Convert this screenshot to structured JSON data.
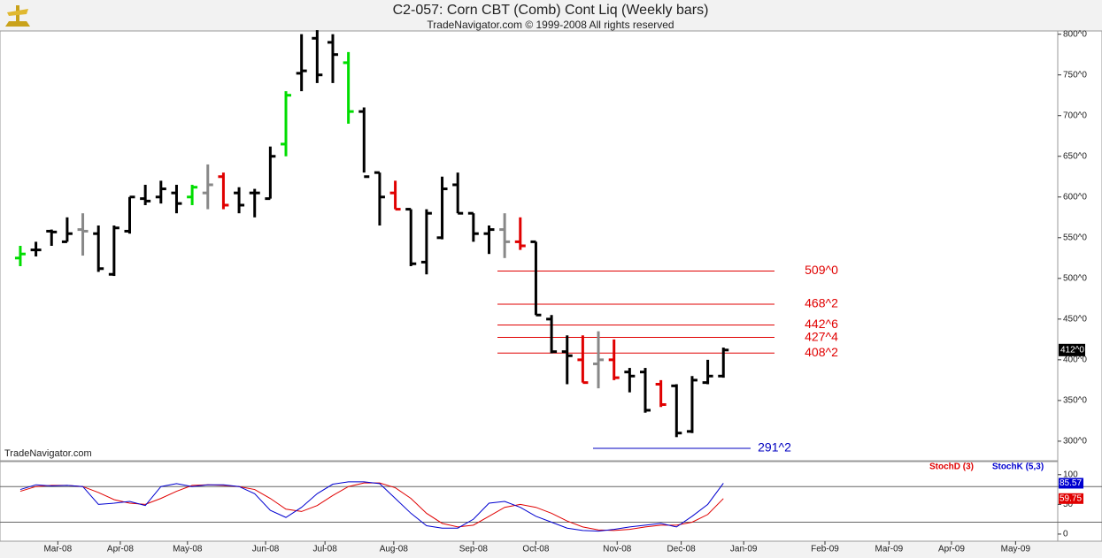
{
  "chart_data": [
    {
      "type": "ohlc",
      "title": "C2-057:  Corn CBT (Comb) Cont Liq  (Weekly bars)",
      "subtitle": "TradeNavigator.com © 1999-2008 All rights reserved",
      "watermark": "TradeNavigator.com",
      "x": [
        0,
        1,
        2,
        3,
        4,
        5,
        6,
        7,
        8,
        9,
        10,
        11,
        12,
        13,
        14,
        15,
        16,
        17,
        18,
        19,
        20,
        21,
        22,
        23,
        24,
        25,
        26,
        27,
        28,
        29,
        30,
        31,
        32,
        33,
        34,
        35,
        36,
        37,
        38,
        39,
        40,
        41,
        42,
        43,
        44,
        45
      ],
      "open": [
        525,
        535,
        558,
        545,
        560,
        555,
        505,
        558,
        598,
        600,
        605,
        600,
        605,
        625,
        605,
        605,
        598,
        665,
        752,
        795,
        790,
        765,
        705,
        630,
        605,
        585,
        520,
        550,
        615,
        580,
        555,
        560,
        545,
        545,
        450,
        410,
        400,
        395,
        400,
        385,
        385,
        370,
        368,
        312,
        372,
        380
      ],
      "high": [
        540,
        545,
        560,
        575,
        580,
        565,
        565,
        600,
        615,
        620,
        615,
        615,
        640,
        630,
        612,
        610,
        662,
        730,
        800,
        805,
        800,
        778,
        710,
        630,
        620,
        585,
        585,
        625,
        630,
        580,
        565,
        580,
        575,
        545,
        455,
        430,
        430,
        435,
        425,
        390,
        390,
        375,
        370,
        380,
        400,
        415
      ],
      "low": [
        515,
        527,
        540,
        545,
        528,
        508,
        503,
        555,
        590,
        592,
        580,
        590,
        585,
        585,
        580,
        575,
        598,
        650,
        730,
        740,
        740,
        690,
        630,
        565,
        585,
        515,
        505,
        548,
        580,
        545,
        530,
        525,
        535,
        455,
        408,
        370,
        372,
        365,
        375,
        360,
        335,
        342,
        305,
        310,
        370,
        378
      ],
      "close": [
        530,
        535,
        557,
        555,
        558,
        512,
        562,
        600,
        595,
        610,
        592,
        612,
        615,
        590,
        590,
        605,
        650,
        725,
        755,
        750,
        775,
        705,
        625,
        600,
        585,
        518,
        580,
        610,
        580,
        555,
        560,
        545,
        540,
        455,
        410,
        405,
        372,
        400,
        378,
        380,
        338,
        345,
        310,
        375,
        380,
        412
      ],
      "colors": [
        "#00dd00",
        "#000000",
        "#000000",
        "#000000",
        "#888888",
        "#000000",
        "#000000",
        "#000000",
        "#000000",
        "#000000",
        "#000000",
        "#00dd00",
        "#888888",
        "#e00000",
        "#000000",
        "#000000",
        "#000000",
        "#00dd00",
        "#000000",
        "#000000",
        "#000000",
        "#00dd00",
        "#000000",
        "#000000",
        "#e00000",
        "#000000",
        "#000000",
        "#000000",
        "#000000",
        "#000000",
        "#000000",
        "#888888",
        "#e00000",
        "#000000",
        "#000000",
        "#000000",
        "#e00000",
        "#888888",
        "#e00000",
        "#000000",
        "#000000",
        "#e00000",
        "#000000",
        "#000000",
        "#000000",
        "#000000"
      ],
      "xlim": [
        -1.3,
        66.4
      ],
      "ylim": [
        276,
        804
      ],
      "yticks": [
        {
          "value": 300,
          "label": "300^0"
        },
        {
          "value": 350,
          "label": "350^0"
        },
        {
          "value": 400,
          "label": "400^0"
        },
        {
          "value": 450,
          "label": "450^0"
        },
        {
          "value": 500,
          "label": "500^0"
        },
        {
          "value": 550,
          "label": "550^0"
        },
        {
          "value": 600,
          "label": "600^0"
        },
        {
          "value": 650,
          "label": "650^0"
        },
        {
          "value": 700,
          "label": "700^0"
        },
        {
          "value": 750,
          "label": "750^0"
        },
        {
          "value": 800,
          "label": "800^0"
        }
      ],
      "last_price": {
        "value": 412,
        "label": "412^0"
      },
      "resistance_levels": [
        {
          "value": 509,
          "label": "509^0"
        },
        {
          "value": 468.25,
          "label": "468^2"
        },
        {
          "value": 442.75,
          "label": "442^6"
        },
        {
          "value": 427.5,
          "label": "427^4"
        },
        {
          "value": 408.25,
          "label": "408^2"
        }
      ],
      "resistance_color": "#e00000",
      "support_levels": [
        {
          "value": 291.25,
          "label": "291^2"
        }
      ],
      "support_color": "#0000c0"
    },
    {
      "type": "line",
      "x": [
        0,
        1,
        2,
        3,
        4,
        5,
        6,
        7,
        8,
        9,
        10,
        11,
        12,
        13,
        14,
        15,
        16,
        17,
        18,
        19,
        20,
        21,
        22,
        23,
        24,
        25,
        26,
        27,
        28,
        29,
        30,
        31,
        32,
        33,
        34,
        35,
        36,
        37,
        38,
        39,
        40,
        41,
        42,
        43,
        44,
        45
      ],
      "series": [
        {
          "name": "StochD (3)",
          "color": "#e00000",
          "values": [
            72,
            80,
            82,
            82,
            80,
            70,
            58,
            52,
            50,
            60,
            72,
            82,
            83,
            82,
            80,
            75,
            60,
            42,
            38,
            48,
            65,
            80,
            86,
            86,
            78,
            60,
            35,
            18,
            12,
            15,
            30,
            45,
            50,
            45,
            35,
            22,
            12,
            7,
            6,
            8,
            12,
            15,
            15,
            20,
            33,
            59.75
          ]
        },
        {
          "name": "StochK (5,3)",
          "color": "#0000d0",
          "values": [
            75,
            83,
            81,
            82,
            80,
            50,
            52,
            55,
            48,
            80,
            85,
            80,
            83,
            83,
            80,
            68,
            40,
            28,
            45,
            68,
            84,
            88,
            88,
            85,
            60,
            35,
            14,
            10,
            10,
            25,
            52,
            55,
            45,
            30,
            20,
            10,
            6,
            5,
            8,
            12,
            15,
            18,
            12,
            30,
            50,
            85.57
          ]
        }
      ],
      "xlim": [
        -1.3,
        66.4
      ],
      "ylim": [
        -12,
        122
      ],
      "yticks": [
        0,
        50,
        100
      ],
      "levels": [
        20,
        80
      ],
      "xticks": [
        {
          "value": 2.4,
          "label": "Mar-08"
        },
        {
          "value": 6.4,
          "label": "Apr-08"
        },
        {
          "value": 10.7,
          "label": "May-08"
        },
        {
          "value": 15.7,
          "label": "Jun-08"
        },
        {
          "value": 19.5,
          "label": "Jul-08"
        },
        {
          "value": 23.9,
          "label": "Aug-08"
        },
        {
          "value": 29.0,
          "label": "Sep-08"
        },
        {
          "value": 33.0,
          "label": "Oct-08"
        },
        {
          "value": 38.2,
          "label": "Nov-08"
        },
        {
          "value": 42.3,
          "label": "Dec-08"
        },
        {
          "value": 46.3,
          "label": "Jan-09"
        },
        {
          "value": 51.5,
          "label": "Feb-09"
        },
        {
          "value": 55.6,
          "label": "Mar-09"
        },
        {
          "value": 59.6,
          "label": "Apr-09"
        },
        {
          "value": 63.7,
          "label": "May-09"
        }
      ]
    }
  ]
}
